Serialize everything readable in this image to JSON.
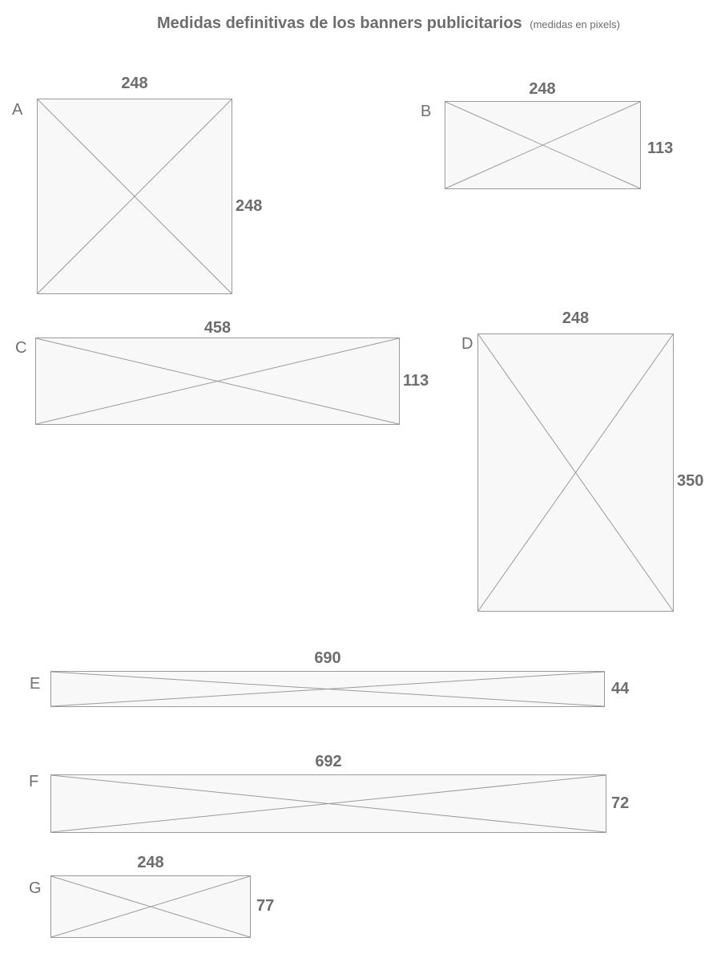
{
  "title": "Medidas definitivas de los banners publicitarios",
  "title_note": "(medidas en pixels)",
  "banners": [
    {
      "letter": "A",
      "width": "248",
      "height": "248"
    },
    {
      "letter": "B",
      "width": "248",
      "height": "113"
    },
    {
      "letter": "C",
      "width": "458",
      "height": "113"
    },
    {
      "letter": "D",
      "width": "248",
      "height": "350"
    },
    {
      "letter": "E",
      "width": "690",
      "height": "44"
    },
    {
      "letter": "F",
      "width": "692",
      "height": "72"
    },
    {
      "letter": "G",
      "width": "248",
      "height": "77"
    }
  ],
  "colors": {
    "text": "#6d6d6d",
    "box_fill": "#f8f8f8",
    "box_stroke": "#9a9a9a"
  }
}
